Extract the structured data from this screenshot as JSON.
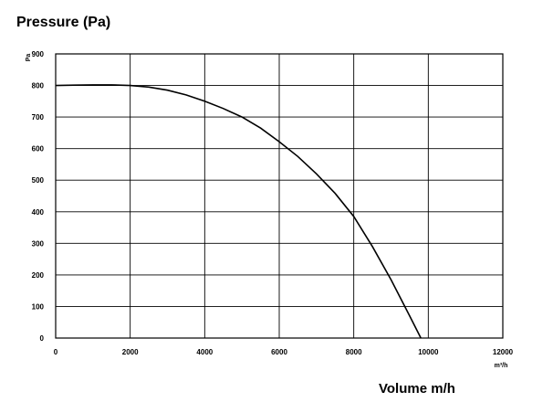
{
  "chart_data": {
    "type": "line",
    "title": "Pressure (Pa)",
    "xlabel": "Volume m/h",
    "x_unit_label": "m³/h",
    "y_unit_label": "Pa",
    "xlim": [
      0,
      12000
    ],
    "ylim": [
      0,
      900
    ],
    "x_ticks": [
      0,
      2000,
      4000,
      6000,
      8000,
      10000,
      12000
    ],
    "y_ticks": [
      0,
      100,
      200,
      300,
      400,
      500,
      600,
      700,
      800,
      900
    ],
    "grid": true,
    "legend": "none",
    "line_color": "#000000",
    "series": [
      {
        "x": [
          0,
          500,
          1000,
          1500,
          2000,
          2500,
          3000,
          3500,
          4000,
          4500,
          5000,
          5500,
          6000,
          6500,
          7000,
          7500,
          8000,
          8500,
          9000,
          9500,
          9800
        ],
        "y": [
          800,
          801,
          802,
          802,
          800,
          795,
          785,
          770,
          750,
          727,
          700,
          665,
          622,
          575,
          520,
          458,
          385,
          290,
          185,
          70,
          0
        ]
      }
    ]
  }
}
